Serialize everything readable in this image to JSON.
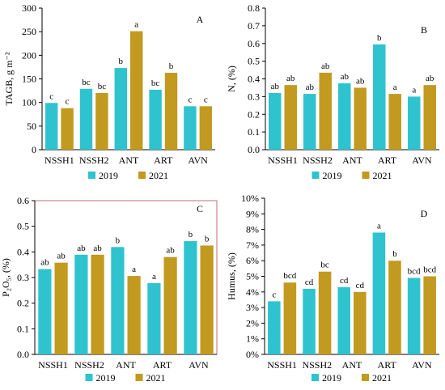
{
  "colors": {
    "series_2019": "#2ec3cf",
    "series_2021": "#c19a1f",
    "axis": "#000000"
  },
  "chart_data": [
    {
      "type": "bar",
      "panel_label": "A",
      "ylabel": "TAGB, g m⁻²",
      "ylim": [
        0,
        300
      ],
      "ytick_step": 50,
      "ytick_decimals": 0,
      "ytick_suffix": "",
      "categories": [
        "NSSH1",
        "NSSH2",
        "ANT",
        "ART",
        "AVN"
      ],
      "series": [
        {
          "name": "2019",
          "values": [
            99,
            129,
            173,
            127,
            92
          ],
          "labels": [
            "c",
            "bc",
            "b",
            "bc",
            "c"
          ]
        },
        {
          "name": "2021",
          "values": [
            88,
            120,
            251,
            163,
            92
          ],
          "labels": [
            "c",
            "bc",
            "a",
            "b",
            "c"
          ]
        }
      ],
      "legend": [
        "2019",
        "2021"
      ],
      "legend_position": "bottom"
    },
    {
      "type": "bar",
      "panel_label": "B",
      "ylabel": "N, (%)",
      "ylim": [
        0,
        0.8
      ],
      "ytick_step": 0.1,
      "ytick_decimals": 1,
      "ytick_suffix": "",
      "categories": [
        "NSSH1",
        "NSSH2",
        "ANT",
        "ART",
        "AVN"
      ],
      "series": [
        {
          "name": "2019",
          "values": [
            0.32,
            0.315,
            0.375,
            0.595,
            0.3
          ],
          "labels": [
            "ab",
            "ab",
            "ab",
            "b",
            "a"
          ]
        },
        {
          "name": "2021",
          "values": [
            0.365,
            0.435,
            0.35,
            0.315,
            0.365
          ],
          "labels": [
            "ab",
            "ab",
            "ab",
            "a",
            "ab"
          ]
        }
      ],
      "legend": [
        "2019",
        "2021"
      ],
      "legend_position": "bottom"
    },
    {
      "type": "bar",
      "panel_label": "C",
      "ylabel": "P₂O₅, (%)",
      "ylim": [
        0,
        0.6
      ],
      "ytick_step": 0.1,
      "ytick_decimals": 1,
      "ytick_suffix": "",
      "categories": [
        "NSSH1",
        "NSSH2",
        "ANT",
        "ART",
        "AVN"
      ],
      "series": [
        {
          "name": "2019",
          "values": [
            0.333,
            0.389,
            0.419,
            0.278,
            0.442
          ],
          "labels": [
            "ab",
            "ab",
            "b",
            "a",
            "b"
          ]
        },
        {
          "name": "2021",
          "values": [
            0.358,
            0.389,
            0.306,
            0.38,
            0.425
          ],
          "labels": [
            "ab",
            "ab",
            "a",
            "ab",
            "b"
          ]
        }
      ],
      "legend": [
        "2019",
        "2021"
      ],
      "legend_position": "bottom"
    },
    {
      "type": "bar",
      "panel_label": "D",
      "ylabel": "Humus, (%)",
      "ylim": [
        0,
        10
      ],
      "ytick_step": 1,
      "ytick_decimals": 0,
      "ytick_suffix": "%",
      "categories": [
        "NSSH1",
        "NSSH2",
        "ANT",
        "ART",
        "AVN"
      ],
      "series": [
        {
          "name": "2019",
          "values": [
            3.4,
            4.2,
            4.3,
            7.8,
            4.9
          ],
          "labels": [
            "c",
            "cd",
            "cd",
            "a",
            "bcd"
          ]
        },
        {
          "name": "2021",
          "values": [
            4.6,
            5.3,
            4.0,
            6.0,
            5.0
          ],
          "labels": [
            "bcd",
            "bc",
            "cd",
            "b",
            "bcd"
          ]
        }
      ],
      "legend": [
        "2019",
        "2021"
      ],
      "legend_position": "bottom"
    }
  ]
}
